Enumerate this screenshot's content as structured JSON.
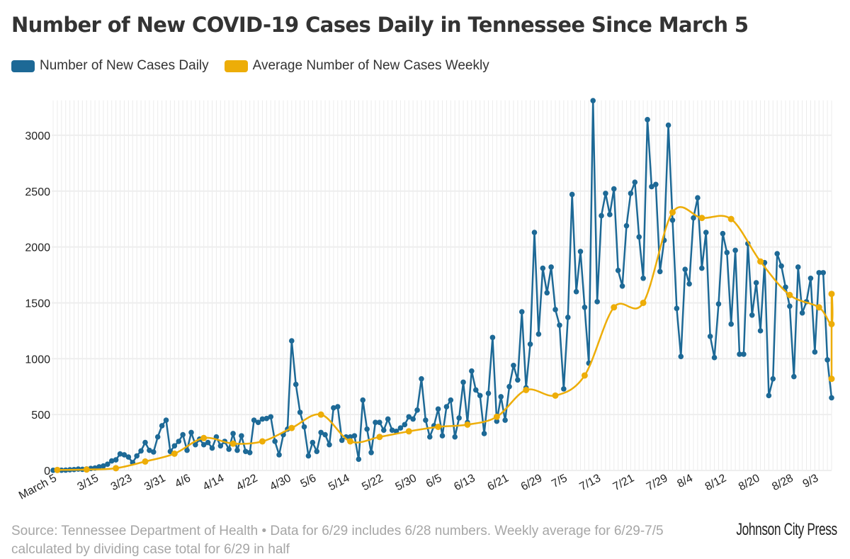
{
  "header": {
    "title": "Number of New COVID-19 Cases Daily in Tennessee Since March 5"
  },
  "legend": [
    {
      "label": "Number of New Cases Daily",
      "color": "#1d6996"
    },
    {
      "label": "Average Number of New Cases Weekly",
      "color": "#edad08"
    }
  ],
  "footer": {
    "source": "Source: Tennessee Department of Health • Data for 6/29 includes 6/28 numbers. Weekly average for 6/29-7/5 calculated by dividing case total for 6/29 in half",
    "brand": "Johnson City Press"
  },
  "chart_data": {
    "type": "line",
    "title": "Number of New COVID-19 Cases Daily in Tennessee Since March 5",
    "xlabel": "",
    "ylabel": "",
    "ylim": [
      0,
      3300
    ],
    "yticks": [
      0,
      500,
      1000,
      1500,
      2000,
      2500,
      3000
    ],
    "grid": true,
    "legend_position": "top-left",
    "x_tick_labels": [
      {
        "day": 0,
        "label": "March 5"
      },
      {
        "day": 10,
        "label": "3/15"
      },
      {
        "day": 18,
        "label": "3/23"
      },
      {
        "day": 26,
        "label": "3/31"
      },
      {
        "day": 32,
        "label": "4/6"
      },
      {
        "day": 40,
        "label": "4/14"
      },
      {
        "day": 48,
        "label": "4/22"
      },
      {
        "day": 56,
        "label": "4/30"
      },
      {
        "day": 62,
        "label": "5/6"
      },
      {
        "day": 70,
        "label": "5/14"
      },
      {
        "day": 78,
        "label": "5/22"
      },
      {
        "day": 86,
        "label": "5/30"
      },
      {
        "day": 92,
        "label": "6/5"
      },
      {
        "day": 100,
        "label": "6/13"
      },
      {
        "day": 108,
        "label": "6/21"
      },
      {
        "day": 116,
        "label": "6/29"
      },
      {
        "day": 122,
        "label": "7/5"
      },
      {
        "day": 130,
        "label": "7/13"
      },
      {
        "day": 138,
        "label": "7/21"
      },
      {
        "day": 146,
        "label": "7/29"
      },
      {
        "day": 152,
        "label": "8/4"
      },
      {
        "day": 160,
        "label": "8/12"
      },
      {
        "day": 168,
        "label": "8/20"
      },
      {
        "day": 176,
        "label": "8/28"
      },
      {
        "day": 182,
        "label": "9/3"
      }
    ],
    "total_days": 187,
    "series": [
      {
        "name": "Number of New Cases Daily",
        "color": "#1d6996",
        "values": [
          1,
          1,
          2,
          3,
          6,
          8,
          12,
          10,
          13,
          18,
          22,
          32,
          40,
          56,
          85,
          95,
          148,
          140,
          120,
          70,
          130,
          175,
          250,
          180,
          165,
          300,
          400,
          450,
          170,
          220,
          260,
          320,
          180,
          340,
          230,
          280,
          230,
          250,
          200,
          300,
          220,
          260,
          190,
          330,
          180,
          310,
          170,
          160,
          450,
          430,
          460,
          465,
          480,
          260,
          140,
          320,
          370,
          1160,
          770,
          520,
          390,
          130,
          250,
          170,
          340,
          320,
          230,
          560,
          570,
          270,
          300,
          300,
          310,
          100,
          630,
          370,
          160,
          430,
          430,
          360,
          460,
          360,
          350,
          380,
          410,
          480,
          460,
          540,
          820,
          450,
          300,
          400,
          550,
          310,
          570,
          630,
          300,
          470,
          790,
          430,
          890,
          720,
          670,
          330,
          690,
          1190,
          440,
          660,
          450,
          750,
          940,
          810,
          1420,
          740,
          1130,
          2130,
          1220,
          1810,
          1590,
          1820,
          1440,
          1300,
          730,
          1370,
          2470,
          1600,
          1960,
          1460,
          960,
          3310,
          1510,
          2280,
          2480,
          2290,
          2520,
          1790,
          1650,
          2190,
          2480,
          2580,
          2090,
          1720,
          3140,
          2540,
          2560,
          1780,
          2060,
          3090,
          2240,
          1450,
          1020,
          1800,
          1670,
          2260,
          2440,
          1810,
          2130,
          1200,
          1010,
          1490,
          2120,
          1950,
          1310,
          1970,
          1040,
          1040,
          2030,
          1390,
          1680,
          1250,
          1860,
          670,
          820,
          1940,
          1830,
          1640,
          1470,
          840,
          1820,
          1410,
          1510,
          1720,
          1060,
          1770,
          1770,
          990,
          650
        ]
      },
      {
        "name": "Average Number of New Cases Weekly",
        "color": "#edad08",
        "points": [
          {
            "day": 1,
            "value": 4
          },
          {
            "day": 8,
            "value": 8
          },
          {
            "day": 15,
            "value": 20
          },
          {
            "day": 22,
            "value": 80
          },
          {
            "day": 29,
            "value": 150
          },
          {
            "day": 36,
            "value": 290
          },
          {
            "day": 43,
            "value": 240
          },
          {
            "day": 50,
            "value": 260
          },
          {
            "day": 57,
            "value": 380
          },
          {
            "day": 64,
            "value": 500
          },
          {
            "day": 71,
            "value": 260
          },
          {
            "day": 78,
            "value": 300
          },
          {
            "day": 85,
            "value": 350
          },
          {
            "day": 92,
            "value": 390
          },
          {
            "day": 99,
            "value": 410
          },
          {
            "day": 106,
            "value": 480
          },
          {
            "day": 113,
            "value": 720
          },
          {
            "day": 120,
            "value": 670
          },
          {
            "day": 127,
            "value": 850
          },
          {
            "day": 134,
            "value": 1460
          },
          {
            "day": 141,
            "value": 1500
          },
          {
            "day": 148,
            "value": 2310
          },
          {
            "day": 155,
            "value": 2260
          },
          {
            "day": 162,
            "value": 2250
          },
          {
            "day": 169,
            "value": 1870
          },
          {
            "day": 176,
            "value": 1570
          },
          {
            "day": 183,
            "value": 1460
          },
          {
            "day": 186,
            "value": 1310
          },
          {
            "day": 187,
            "value": 1580
          },
          {
            "day": 188,
            "value": 820
          }
        ]
      }
    ]
  }
}
